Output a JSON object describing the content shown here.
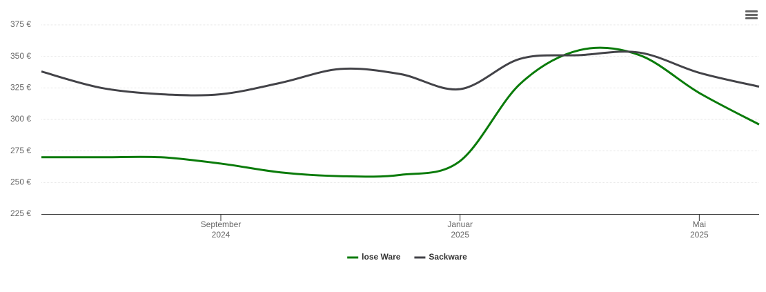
{
  "chart_data": {
    "type": "line",
    "x": [
      "2024-06",
      "2024-07",
      "2024-08",
      "2024-09",
      "2024-10",
      "2024-11",
      "2024-12",
      "2025-01",
      "2025-02",
      "2025-03",
      "2025-04",
      "2025-05",
      "2025-06"
    ],
    "xlim": [
      "2024-06",
      "2025-06"
    ],
    "xticks": [
      {
        "value": "2024-09",
        "label": [
          "September",
          "2024"
        ]
      },
      {
        "value": "2025-01",
        "label": [
          "Januar",
          "2025"
        ]
      },
      {
        "value": "2025-05",
        "label": [
          "Mai",
          "2025"
        ]
      }
    ],
    "ylim": [
      225,
      375
    ],
    "yticks": [
      {
        "value": 225,
        "label": "225 €"
      },
      {
        "value": 250,
        "label": "250 €"
      },
      {
        "value": 275,
        "label": "275 €"
      },
      {
        "value": 300,
        "label": "300 €"
      },
      {
        "value": 325,
        "label": "325 €"
      },
      {
        "value": 350,
        "label": "350 €"
      },
      {
        "value": 375,
        "label": "375 €"
      }
    ],
    "grid": true,
    "legend": "bottom",
    "series": [
      {
        "name": "lose Ware",
        "color": "#0a7b0a",
        "values": [
          270,
          270,
          270,
          265,
          258,
          255,
          256,
          267,
          328,
          355,
          351,
          321,
          296
        ]
      },
      {
        "name": "Sackware",
        "color": "#434348",
        "values": [
          338,
          325,
          320,
          320,
          329,
          340,
          336,
          324,
          348,
          351,
          353,
          337,
          326
        ]
      }
    ]
  }
}
